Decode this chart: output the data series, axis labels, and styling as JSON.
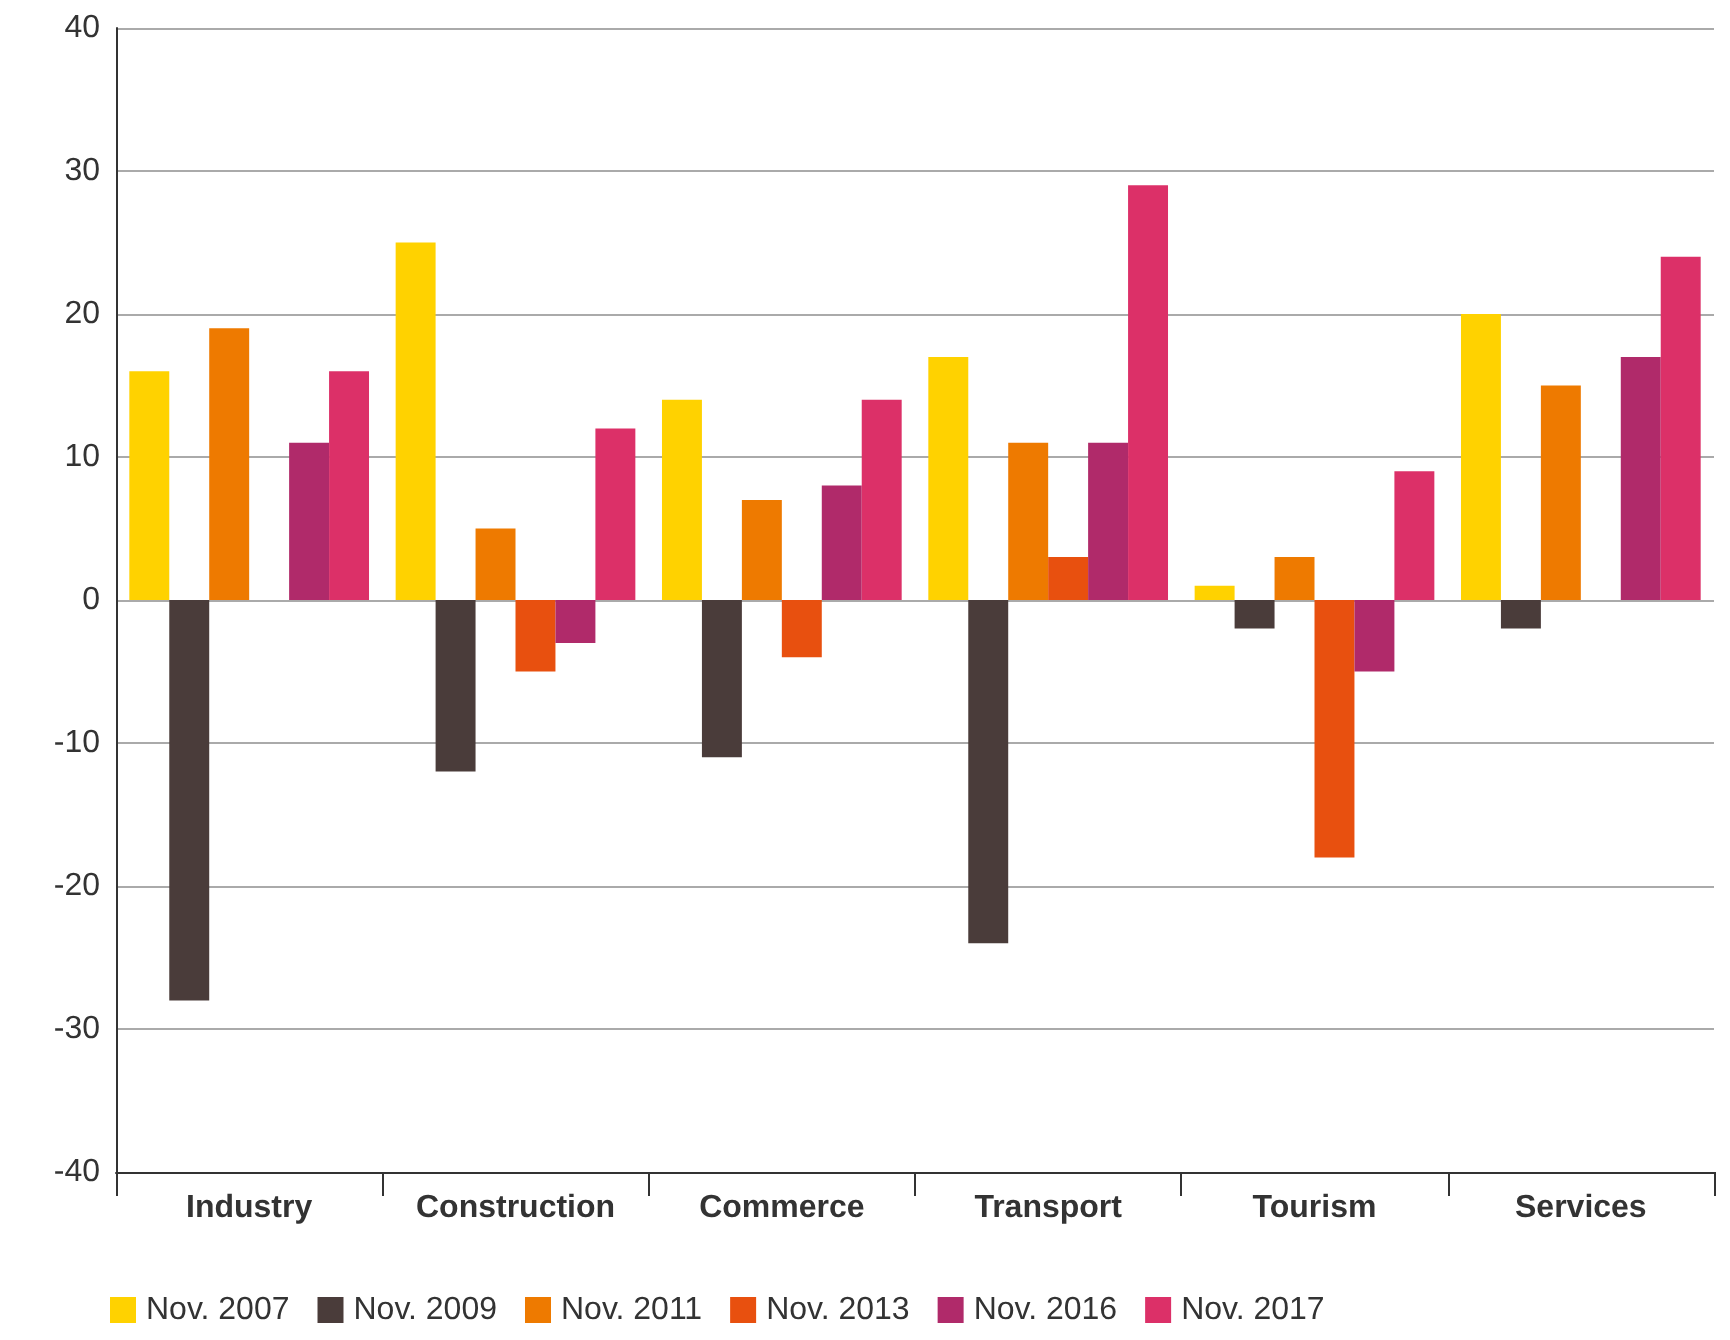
{
  "chart_data": {
    "type": "bar",
    "categories": [
      "Industry",
      "Construction",
      "Commerce",
      "Transport",
      "Tourism",
      "Services"
    ],
    "series": [
      {
        "name": "Nov. 2007",
        "color": "#ffd200",
        "values": [
          16,
          25,
          14,
          17,
          1,
          20
        ]
      },
      {
        "name": "Nov. 2009",
        "color": "#4a3c3a",
        "values": [
          -28,
          -12,
          -11,
          -24,
          -2,
          -2
        ]
      },
      {
        "name": "Nov. 2011",
        "color": "#ee7a00",
        "values": [
          19,
          5,
          7,
          11,
          3,
          15
        ]
      },
      {
        "name": "Nov. 2013",
        "color": "#e8500f",
        "values": [
          null,
          -5,
          -4,
          3,
          -18,
          null
        ]
      },
      {
        "name": "Nov. 2016",
        "color": "#b02a6a",
        "values": [
          11,
          -3,
          8,
          11,
          -5,
          17
        ]
      },
      {
        "name": "Nov. 2017",
        "color": "#dc3068",
        "values": [
          16,
          12,
          14,
          29,
          9,
          24
        ]
      }
    ],
    "ylim": [
      -40,
      40
    ],
    "yticks": [
      -40,
      -30,
      -20,
      -10,
      0,
      10,
      20,
      30,
      40
    ],
    "grid": "y",
    "legend": "bottom left"
  }
}
